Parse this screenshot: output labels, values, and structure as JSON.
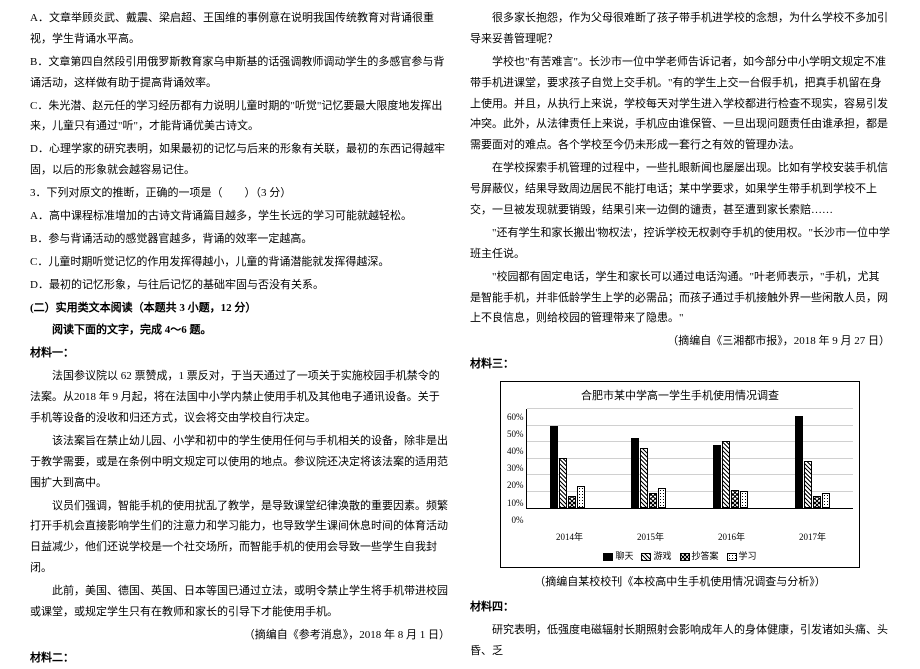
{
  "left": {
    "p1": "A．文章举顾炎武、戴震、梁启超、王国维的事例意在说明我国传统教育对背诵很重视，学生背诵水平高。",
    "p2": "B．文章第四自然段引用俄罗斯教育家乌申斯基的话强调教师调动学生的多感官参与背诵活动，这样做有助于提高背诵效率。",
    "p3": "C．朱光潜、赵元任的学习经历都有力说明儿童时期的\"听觉\"记忆要最大限度地发挥出来，儿童只有通过\"听\"，才能背诵优美古诗文。",
    "p4": "D．心理学家的研究表明，如果最初的记忆与后来的形象有关联，最初的东西记得越牢固，以后的形象就会越容易记住。",
    "q3": "3．下列对原文的推断，正确的一项是（　　）（3 分）",
    "a3a": "A．高中课程标准增加的古诗文背诵篇目越多，学生长远的学习可能就越轻松。",
    "a3b": "B．参与背诵活动的感觉器官越多，背诵的效率一定越高。",
    "a3c": "C．儿童时期听觉记忆的作用发挥得越小，儿童的背诵潜能就发挥得越深。",
    "a3d": "D．最初的记忆形象，与往后记忆的基础牢固与否没有关系。",
    "section2_title": "(二）实用类文本阅读（本题共 3 小题，12 分）",
    "readprompt": "阅读下面的文字，完成 4～6 题。",
    "m1_label": "材料一：",
    "m1p1": "法国参议院以 62 票赞成，1 票反对，于当天通过了一项关于实施校园手机禁令的法案。从2018 年 9 月起，将在法国中小学内禁止使用手机及其他电子通讯设备。关于手机等设备的没收和归还方式，议会将交由学校自行决定。",
    "m1p2": "该法案旨在禁止幼儿园、小学和初中的学生使用任何与手机相关的设备，除非是出于教学需要，或是在条例中明文规定可以使用的地点。参议院还决定将该法案的适用范围扩大到高中。",
    "m1p3": "议员们强调，智能手机的使用扰乱了教学，是导致课堂纪律涣散的重要因素。频繁打开手机会直接影响学生们的注意力和学习能力，也导致学生课间休息时间的体育活动日益减少，他们还说学校是一个社交场所，而智能手机的使用会导致一些学生自我封闭。",
    "m1p4": "此前，美国、德国、英国、日本等国已通过立法，或明令禁止学生将手机带进校园或课堂，或规定学生只有在教师和家长的引导下才能使用手机。",
    "m1src": "（摘编自《参考消息》，2018 年 8 月 1 日）",
    "m2_label": "材料二："
  },
  "right": {
    "p1": "很多家长抱怨，作为父母很难断了孩子带手机进学校的念想，为什么学校不多加引导来妥善管理呢？",
    "p2": "学校也\"有苦难言\"。长沙市一位中学老师告诉记者，如今部分中小学明文规定不准带手机进课堂，要求孩子自觉上交手机。\"有的学生上交一台假手机，把真手机留在身上使用。并且，从执行上来说，学校每天对学生进入学校都进行检查不现实，容易引发冲突。此外，从法律责任上来说，手机应由谁保管、一旦出现问题责任由谁承担，都是需要面对的难点。各个学校至今仍未形成一套行之有效的管理办法。",
    "p3": "在学校探索手机管理的过程中，一些扎眼新闻也屡屡出现。比如有学校安装手机信号屏蔽仪，结果导致周边居民不能打电话；某中学要求，如果学生带手机到学校不上交，一旦被发现就要销毁，结果引来一边倒的谴责，甚至遭到家长索赔……",
    "p4": "\"还有学生和家长搬出'物权法'，控诉学校无权剥夺手机的使用权。\"长沙市一位中学班主任说。",
    "p5": "\"校园都有固定电话，学生和家长可以通过电话沟通。\"叶老师表示，\"手机，尤其是智能手机，并非低龄学生上学的必需品；而孩子通过手机接触外界一些闲散人员，网上不良信息，则给校园的管理带来了隐患。\"",
    "p5src": "（摘编自《三湘都市报》，2018 年 9 月 27 日）",
    "m3_label": "材料三：",
    "chart": {
      "title": "合肥市某中学高一学生手机使用情况调查",
      "ylim": [
        0,
        60
      ],
      "yticks": [
        "60%",
        "50%",
        "40%",
        "30%",
        "20%",
        "10%",
        "0%"
      ],
      "years": [
        "2014年",
        "2015年",
        "2016年",
        "2017年"
      ],
      "series": [
        "聊天",
        "游戏",
        "抄答案",
        "学习"
      ],
      "series_patterns": [
        "solid",
        "diag",
        "cross",
        "dots"
      ],
      "data": {
        "2014年": [
          49,
          30,
          7,
          13
        ],
        "2015年": [
          42,
          36,
          9,
          12
        ],
        "2016年": [
          38,
          40,
          11,
          10
        ],
        "2017年": [
          55,
          28,
          7,
          9
        ]
      },
      "grid_color": "#d0d0d0"
    },
    "chart_caption": "（摘编自某校校刊《本校高中生手机使用情况调查与分析》）",
    "m4_label": "材料四：",
    "m4p1": "研究表明，低强度电磁辐射长期照射会影响成年人的身体健康，引发诸如头痛、头昏、乏"
  }
}
